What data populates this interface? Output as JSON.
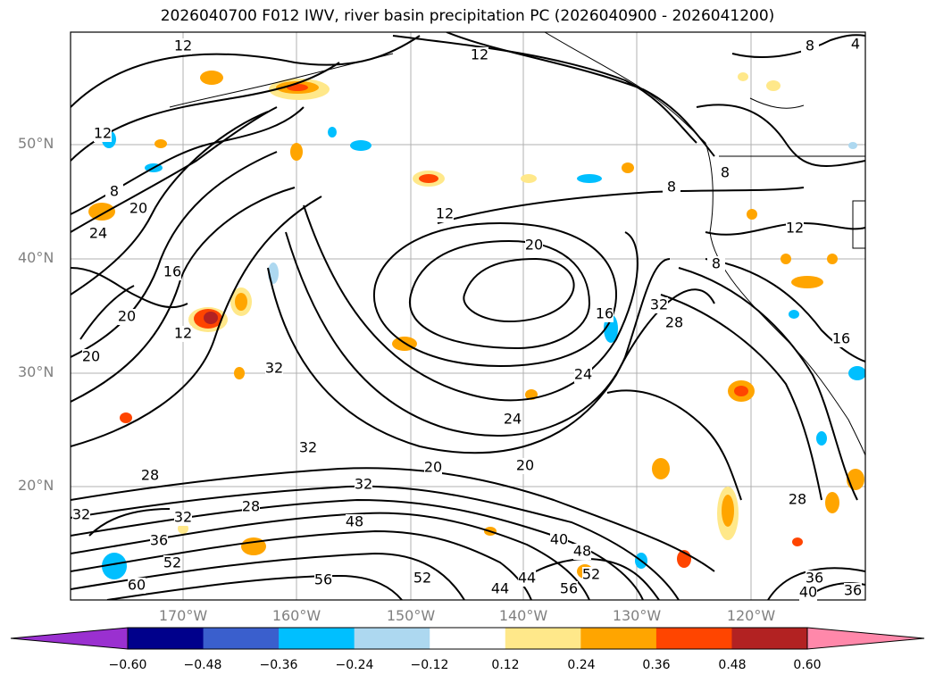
{
  "title": "2026040700 F012 IWV, river basin precipitation PC (2026040900 - 2026041200)",
  "lat_labels": [
    "50°N",
    "40°N",
    "30°N",
    "20°N"
  ],
  "lon_labels": [
    "170°W",
    "160°W",
    "150°W",
    "140°W",
    "130°W",
    "120°W"
  ],
  "colorbar": {
    "ticks": [
      "−0.60",
      "−0.48",
      "−0.36",
      "−0.24",
      "−0.12",
      "0.12",
      "0.24",
      "0.36",
      "0.48",
      "0.60"
    ],
    "colors": [
      "#9a30d0",
      "#00008b",
      "#3a5fcd",
      "#00bfff",
      "#add8f0",
      "#ffffff",
      "#ffe88a",
      "#ffa500",
      "#ff4500",
      "#b22222",
      "#ff88aa"
    ]
  },
  "contour_labels": [
    {
      "text": "12"
    },
    {
      "text": "12"
    },
    {
      "text": "12"
    },
    {
      "text": "12"
    },
    {
      "text": "12"
    },
    {
      "text": "12"
    },
    {
      "text": "8"
    },
    {
      "text": "8"
    },
    {
      "text": "8"
    },
    {
      "text": "8"
    },
    {
      "text": "8"
    },
    {
      "text": "4"
    },
    {
      "text": "20"
    },
    {
      "text": "20"
    },
    {
      "text": "20"
    },
    {
      "text": "20"
    },
    {
      "text": "20"
    },
    {
      "text": "20"
    },
    {
      "text": "24"
    },
    {
      "text": "24"
    },
    {
      "text": "24"
    },
    {
      "text": "16"
    },
    {
      "text": "16"
    },
    {
      "text": "16"
    },
    {
      "text": "32"
    },
    {
      "text": "32"
    },
    {
      "text": "32"
    },
    {
      "text": "32"
    },
    {
      "text": "32"
    },
    {
      "text": "32"
    },
    {
      "text": "28"
    },
    {
      "text": "28"
    },
    {
      "text": "28"
    },
    {
      "text": "28"
    },
    {
      "text": "36"
    },
    {
      "text": "36"
    },
    {
      "text": "36"
    },
    {
      "text": "48"
    },
    {
      "text": "48"
    },
    {
      "text": "52"
    },
    {
      "text": "52"
    },
    {
      "text": "52"
    },
    {
      "text": "56"
    },
    {
      "text": "56"
    },
    {
      "text": "60"
    },
    {
      "text": "40"
    },
    {
      "text": "40"
    },
    {
      "text": "44"
    },
    {
      "text": "44"
    }
  ]
}
